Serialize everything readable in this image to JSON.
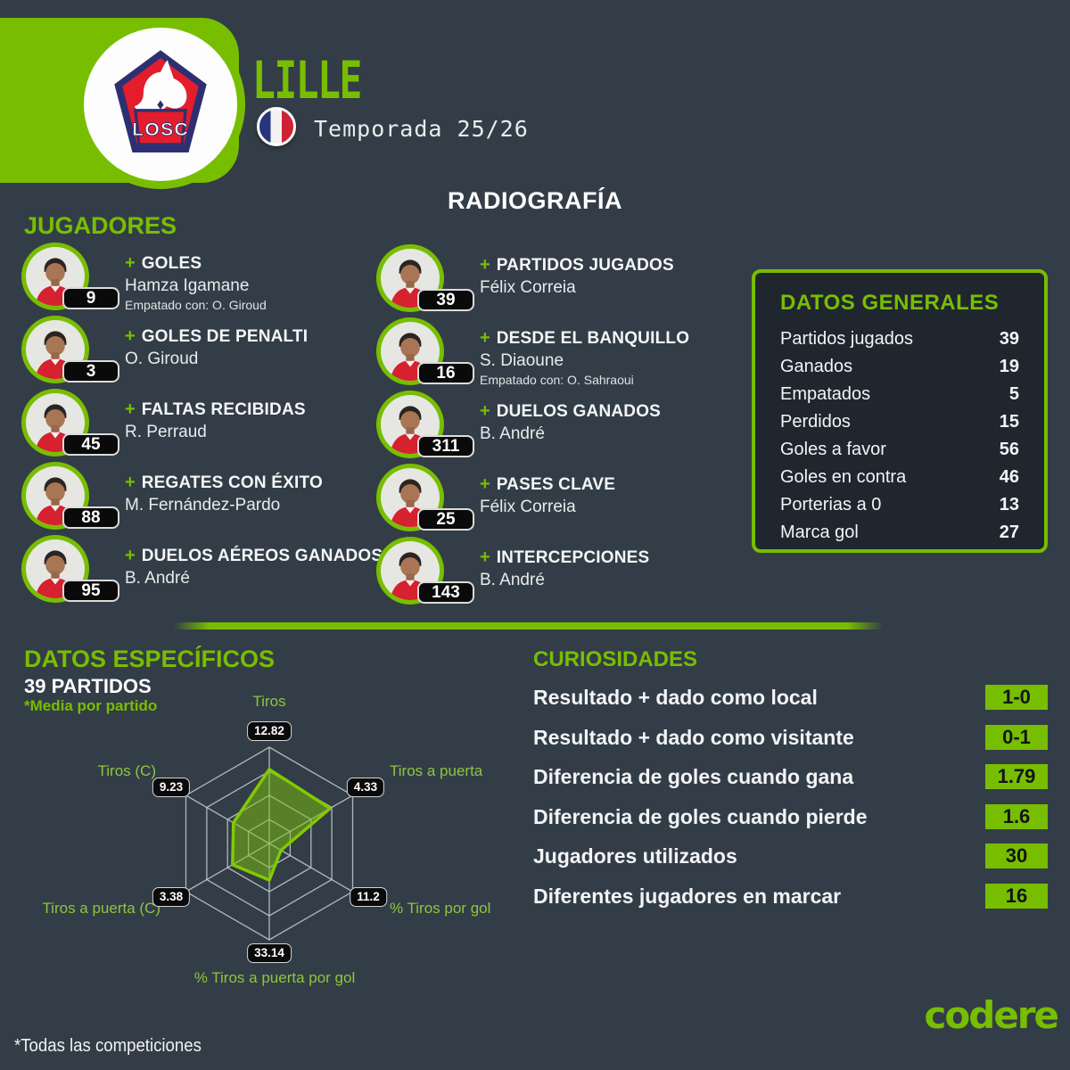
{
  "header": {
    "team_name": "LILLE",
    "season_label": "Temporada 25/26",
    "crest_text": "LOSC",
    "page_title": "RADIOGRAFÍA"
  },
  "players": {
    "title": "JUGADORES",
    "plus": "+",
    "left": [
      {
        "stat": "GOLES",
        "name": "Hamza Igamane",
        "note": "Empatado con: O. Giroud",
        "value": 9
      },
      {
        "stat": "GOLES DE PENALTI",
        "name": "O. Giroud",
        "value": 3
      },
      {
        "stat": "FALTAS RECIBIDAS",
        "name": "R. Perraud",
        "value": 45
      },
      {
        "stat": "REGATES CON ÉXITO",
        "name": "M. Fernández-Pardo",
        "value": 88
      },
      {
        "stat": "DUELOS AÉREOS GANADOS",
        "name": "B. André",
        "value": 95
      }
    ],
    "right": [
      {
        "stat": "PARTIDOS JUGADOS",
        "name": "Félix Correia",
        "value": 39
      },
      {
        "stat": "DESDE EL BANQUILLO",
        "name": "S. Diaoune",
        "note": "Empatado con: O. Sahraoui",
        "value": 16
      },
      {
        "stat": "DUELOS GANADOS",
        "name": "B. André",
        "value": 311
      },
      {
        "stat": "PASES CLAVE",
        "name": "Félix Correia",
        "value": 25
      },
      {
        "stat": "INTERCEPCIONES",
        "name": "B. André",
        "value": 143
      }
    ]
  },
  "general": {
    "title": "DATOS GENERALES",
    "rows": [
      {
        "label": "Partidos jugados",
        "value": 39
      },
      {
        "label": "Ganados",
        "value": 19
      },
      {
        "label": "Empatados",
        "value": 5
      },
      {
        "label": "Perdidos",
        "value": 15
      },
      {
        "label": "Goles a favor",
        "value": 56
      },
      {
        "label": "Goles en contra",
        "value": 46
      },
      {
        "label": "Porterias a 0",
        "value": 13
      },
      {
        "label": "Marca gol",
        "value": 27
      }
    ]
  },
  "specific": {
    "title": "DATOS ESPECÍFICOS",
    "subtitle": "39 PARTIDOS",
    "note": "*Media por partido"
  },
  "chart_data": {
    "type": "radar",
    "title": "DATOS ESPECÍFICOS",
    "subtitle": "39 PARTIDOS",
    "note": "*Media por partido",
    "categories": [
      "Tiros",
      "Tiros a puerta",
      "% Tiros por gol",
      "% Tiros a puerta por gol",
      "Tiros a puerta (C)",
      "Tiros (C)"
    ],
    "values": [
      12.82,
      4.33,
      11.2,
      33.14,
      3.38,
      9.23
    ],
    "plotted_fractions": [
      0.77,
      0.73,
      0.14,
      0.38,
      0.44,
      0.43
    ],
    "grid_rings": [
      0.25,
      0.5,
      0.75,
      1.0
    ],
    "grid": true,
    "legend": false
  },
  "curiosities": {
    "title": "CURIOSIDADES",
    "rows": [
      {
        "label": "Resultado + dado como local",
        "value": "1-0"
      },
      {
        "label": "Resultado + dado como visitante",
        "value": "0-1"
      },
      {
        "label": "Diferencia de goles cuando gana",
        "value": "1.79"
      },
      {
        "label": "Diferencia de goles cuando pierde",
        "value": "1.6"
      },
      {
        "label": "Jugadores utilizados",
        "value": "30"
      },
      {
        "label": "Diferentes jugadores en marcar",
        "value": "16"
      }
    ]
  },
  "footer": {
    "note": "*Todas las competiciones",
    "brand": "codere"
  },
  "colors": {
    "accent_green": "#78be00",
    "background": "#333d47",
    "panel_bg": "#20262e",
    "badge_bg": "#0a0a0a",
    "flag_blue": "#27357e",
    "flag_red": "#cf2232",
    "jersey_red": "#d6212f",
    "radar_grid": "#c6ccd2",
    "radar_stroke": "#82ca00"
  }
}
